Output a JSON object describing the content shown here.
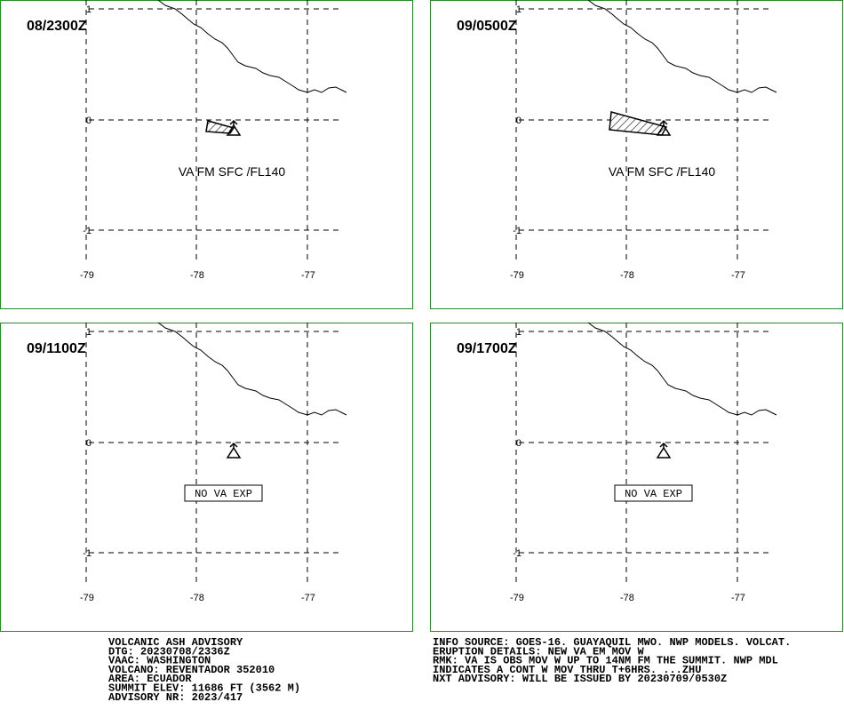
{
  "panels": [
    {
      "time": "08/2300Z",
      "label": "VA FM SFC /FL140"
    },
    {
      "time": "09/0500Z",
      "label": "VA FM SFC /FL140"
    },
    {
      "time": "09/1100Z",
      "label": "NO VA EXP"
    },
    {
      "time": "09/1700Z",
      "label": "NO VA EXP"
    }
  ],
  "lon_labels": [
    "-79",
    "-78",
    "-77"
  ],
  "lat_labels": [
    "1",
    "0",
    "-1"
  ],
  "advisory": {
    "left": [
      "VOLCANIC ASH ADVISORY",
      "DTG: 20230708/2336Z",
      "VAAC: WASHINGTON",
      "VOLCANO: REVENTADOR 352010",
      "AREA: ECUADOR",
      "SUMMIT ELEV: 11686 FT (3562 M)",
      "ADVISORY NR: 2023/417"
    ],
    "right": [
      "INFO SOURCE: GOES-16. GUAYAQUIL MWO. NWP MODELS. VOLCAT.",
      "ERUPTION DETAILS: NEW VA EM MOV W",
      "RMK: VA IS OBS MOV W UP TO 14NM FM THE SUMMIT. NWP MDL",
      "INDICATES A CONT W MOV THRU T+6HRS. ...ZHU",
      "NXT ADVISORY: WILL BE ISSUED BY 20230709/0530Z"
    ]
  }
}
